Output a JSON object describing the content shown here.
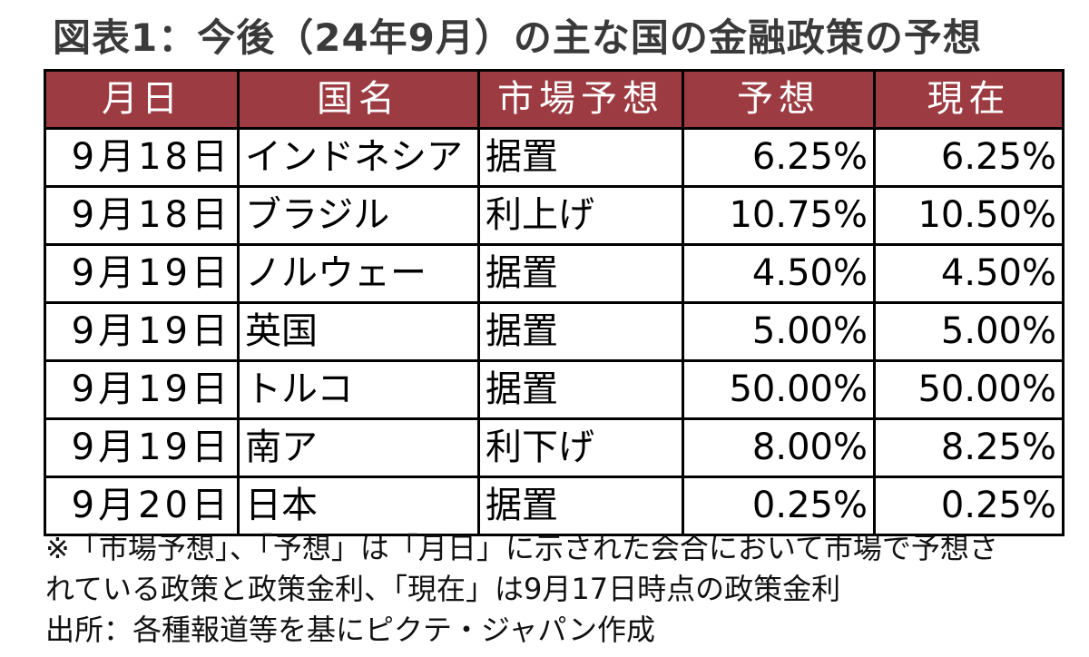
{
  "title": "図表1：今後（24年9月）の主な国の金融政策の予想",
  "table": {
    "headers": [
      "月日",
      "国名",
      "市場予想",
      "予想",
      "現在"
    ],
    "rows": [
      [
        "9月18日",
        "インドネシア",
        "据置",
        "6.25%",
        "6.25%"
      ],
      [
        "9月18日",
        "ブラジル",
        "利上げ",
        "10.75%",
        "10.50%"
      ],
      [
        "9月19日",
        "ノルウェー",
        "据置",
        "4.50%",
        "4.50%"
      ],
      [
        "9月19日",
        "英国",
        "据置",
        "5.00%",
        "5.00%"
      ],
      [
        "9月19日",
        "トルコ",
        "据置",
        "50.00%",
        "50.00%"
      ],
      [
        "9月19日",
        "南ア",
        "利下げ",
        "8.00%",
        "8.25%"
      ],
      [
        "9月20日",
        "日本",
        "据置",
        "0.25%",
        "0.25%"
      ]
    ]
  },
  "notes": [
    "※「市場予想」、「予想」は「月日」に示された会合において市場で予想さ",
    "れている政策と政策金利、「現在」は9月17日時点の政策金利",
    "出所：各種報道等を基にピクテ・ジャパン作成"
  ],
  "colors": {
    "header_bg": "#9c3c42",
    "header_text": "#ffffff"
  }
}
